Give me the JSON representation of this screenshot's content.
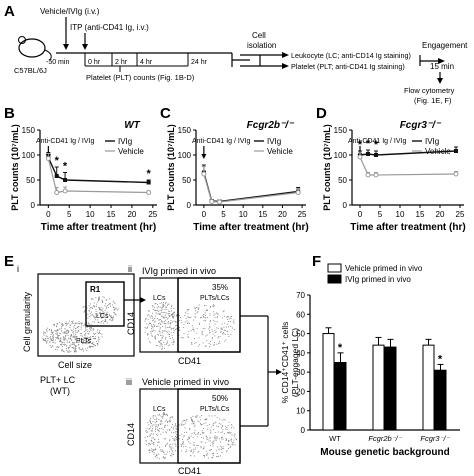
{
  "panelA": {
    "letter": "A",
    "mouse_label": "C57BL/6J",
    "treat1": "Vehicle/IVIg (i.v.)",
    "treat2": "ITP (anti-CD41 Ig, i.v.)",
    "times": [
      "-50 min",
      "0 hr",
      "2 hr",
      "4 hr",
      "24 hr"
    ],
    "platelet_counts": "Platelet (PLT) counts (Fig. 1B-D)",
    "cell_isolation": "Cell\nisolation",
    "leukocyte": "Leukocyte (LC; anti-CD14 Ig staining)",
    "platelet": "Platelet (PLT; anti-CD41 Ig staining)",
    "engagement": "Engagement\n15 min",
    "flow": "Flow cytometry\n(Fig. 1E, F)"
  },
  "chart_data": [
    {
      "panel": "B",
      "type": "line",
      "title": "WT",
      "xlabel": "Time after treatment (hr)",
      "ylabel": "PLT counts (10⁷/mL)",
      "xlim": [
        -2,
        26
      ],
      "ylim": [
        0,
        150
      ],
      "xticks": [
        0,
        5,
        10,
        15,
        20,
        25
      ],
      "yticks": [
        0,
        50,
        100,
        150
      ],
      "annotation": "Anti-CD41 Ig / IVIg",
      "series": [
        {
          "name": "IVIg",
          "x": [
            0,
            2,
            4,
            24
          ],
          "y": [
            95,
            58,
            50,
            45
          ],
          "err": [
            10,
            18,
            15,
            5
          ]
        },
        {
          "name": "Vehicle",
          "x": [
            0,
            2,
            4,
            24
          ],
          "y": [
            93,
            25,
            28,
            25
          ],
          "err": [
            10,
            10,
            8,
            3
          ]
        }
      ],
      "significance": [
        {
          "x": 2,
          "label": "*"
        },
        {
          "x": 4,
          "label": "*"
        },
        {
          "x": 24,
          "label": "*"
        }
      ]
    },
    {
      "panel": "C",
      "type": "line",
      "title": "Fcgr2b⁻/⁻",
      "xlabel": "Time after treatment (hr)",
      "ylabel": "PLT counts (10⁷/mL)",
      "xlim": [
        -2,
        26
      ],
      "ylim": [
        0,
        150
      ],
      "xticks": [
        0,
        5,
        10,
        15,
        20,
        25
      ],
      "yticks": [
        0,
        50,
        100,
        150
      ],
      "annotation": "Anti-CD41 Ig / IVIg",
      "series": [
        {
          "name": "IVIg",
          "x": [
            0,
            2,
            4,
            24
          ],
          "y": [
            65,
            8,
            7,
            27
          ],
          "err": [
            15,
            3,
            3,
            8
          ]
        },
        {
          "name": "Vehicle",
          "x": [
            0,
            2,
            4,
            24
          ],
          "y": [
            62,
            7,
            6,
            25
          ],
          "err": [
            15,
            3,
            3,
            8
          ]
        }
      ],
      "significance": []
    },
    {
      "panel": "D",
      "type": "line",
      "title": "Fcgr3⁻/⁻",
      "xlabel": "Time after treatment (hr)",
      "ylabel": "PLT counts (10⁷/mL)",
      "xlim": [
        -2,
        26
      ],
      "ylim": [
        0,
        150
      ],
      "xticks": [
        0,
        5,
        10,
        15,
        20,
        25
      ],
      "yticks": [
        0,
        50,
        100,
        150
      ],
      "annotation": "Anti-CD41 Ig / IVIg",
      "series": [
        {
          "name": "IVIg",
          "x": [
            0,
            2,
            4,
            24
          ],
          "y": [
            100,
            102,
            100,
            108
          ],
          "err": [
            8,
            8,
            8,
            8
          ]
        },
        {
          "name": "Vehicle",
          "x": [
            0,
            2,
            4,
            24
          ],
          "y": [
            96,
            60,
            60,
            62
          ],
          "err": [
            8,
            5,
            5,
            5
          ]
        }
      ],
      "significance": [
        {
          "x": 0,
          "label": "*"
        },
        {
          "x": 2,
          "label": "*"
        },
        {
          "x": 4,
          "label": "*"
        }
      ]
    },
    {
      "panel": "F",
      "type": "bar",
      "xlabel": "Mouse genetic background",
      "ylabel": "% CD14⁺CD41⁺ cells\n(PLT-engaged LC)",
      "ylim": [
        0,
        70
      ],
      "yticks": [
        0,
        10,
        20,
        30,
        40,
        50,
        60,
        70
      ],
      "categories": [
        "WT",
        "Fcgr2b⁻/⁻",
        "Fcgr3⁻/⁻"
      ],
      "series": [
        {
          "name": "Vehicle primed in vivo",
          "values": [
            50,
            44,
            44
          ],
          "err": [
            3,
            4,
            3
          ]
        },
        {
          "name": "IVIg primed in vivo",
          "values": [
            35,
            43,
            31
          ],
          "err": [
            5,
            4,
            3
          ]
        }
      ],
      "significance": [
        {
          "category": "WT",
          "label": "*"
        },
        {
          "category": "Fcgr3⁻/⁻",
          "label": "*"
        }
      ]
    }
  ],
  "panelE": {
    "letter": "E",
    "roman": [
      "i",
      "ii",
      "iii"
    ],
    "gran_label": "Cell granularity",
    "size_label": "Cell size",
    "gate": "R1",
    "lcs": "LCs",
    "plts": "PLTs",
    "plt_lc": "PLT+ LC\n(WT)",
    "ii_title": "IVIg primed in vivo",
    "iii_title": "Vehicle primed in vivo",
    "ii_pct": "35%",
    "iii_pct": "50%",
    "plts_lcs": "PLTs/LCs",
    "cd14": "CD14",
    "cd41": "CD41"
  }
}
